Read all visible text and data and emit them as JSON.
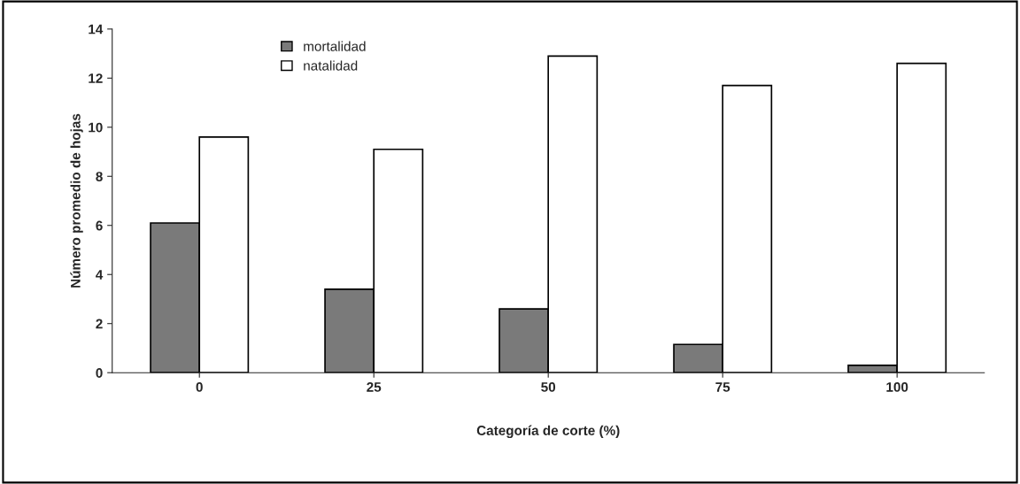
{
  "chart_data": {
    "type": "bar",
    "xlabel": "Categoría de corte (%)",
    "ylabel": "Número promedio de hojas",
    "categories": [
      "0",
      "25",
      "50",
      "75",
      "100"
    ],
    "series": [
      {
        "name": "mortalidad",
        "color": "#7a7a7a",
        "values": [
          6.1,
          3.4,
          2.6,
          1.15,
          0.3
        ]
      },
      {
        "name": "natalidad",
        "color": "#ffffff",
        "values": [
          9.6,
          9.1,
          12.9,
          11.7,
          12.6
        ]
      }
    ],
    "ylim": [
      0,
      14
    ],
    "yticks": [
      0,
      2,
      4,
      6,
      8,
      10,
      12,
      14
    ],
    "grid": false,
    "legend": "top left"
  }
}
